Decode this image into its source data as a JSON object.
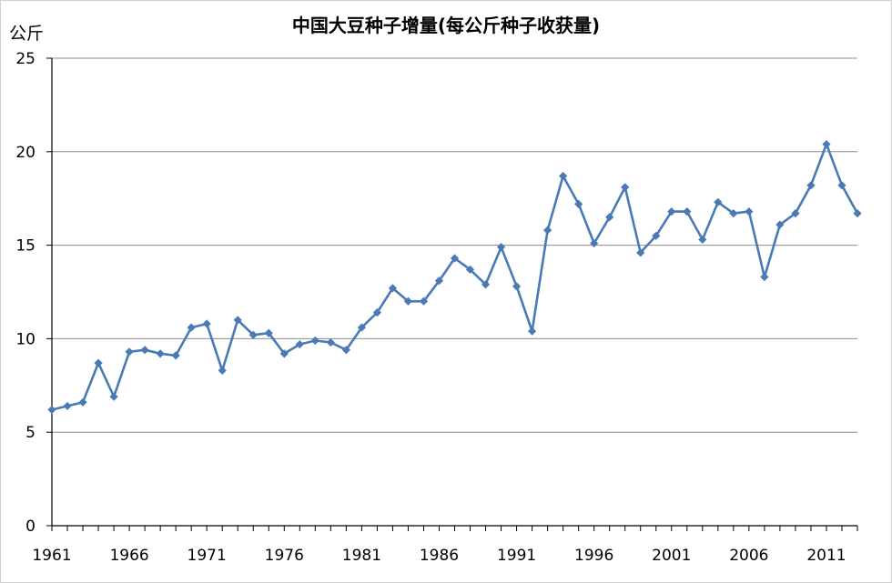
{
  "chart_data": {
    "type": "line",
    "title": "中国大豆种子增量(每公斤种子收获量)",
    "ylabel": "公斤",
    "xlabel": "",
    "ylim": [
      0,
      25
    ],
    "yticks": [
      0,
      5,
      10,
      15,
      20,
      25
    ],
    "xlim": [
      1961,
      2013
    ],
    "xtick_labels": [
      "1961",
      "1966",
      "1971",
      "1976",
      "1981",
      "1986",
      "1991",
      "1996",
      "2001",
      "2006",
      "2011"
    ],
    "grid": "horizontal",
    "legend": "none",
    "series": [
      {
        "color": "#4a7ab5",
        "marker": "diamond",
        "x": [
          1961,
          1962,
          1963,
          1964,
          1965,
          1966,
          1967,
          1968,
          1969,
          1970,
          1971,
          1972,
          1973,
          1974,
          1975,
          1976,
          1977,
          1978,
          1979,
          1980,
          1981,
          1982,
          1983,
          1984,
          1985,
          1986,
          1987,
          1988,
          1989,
          1990,
          1991,
          1992,
          1993,
          1994,
          1995,
          1996,
          1997,
          1998,
          1999,
          2000,
          2001,
          2002,
          2003,
          2004,
          2005,
          2006,
          2007,
          2008,
          2009,
          2010,
          2011,
          2012,
          2013
        ],
        "values": [
          6.2,
          6.4,
          6.6,
          8.7,
          6.9,
          9.3,
          9.4,
          9.2,
          9.1,
          10.6,
          10.8,
          8.3,
          11.0,
          10.2,
          10.3,
          9.2,
          9.7,
          9.9,
          9.8,
          9.4,
          10.6,
          11.4,
          12.7,
          12.0,
          12.0,
          13.1,
          14.3,
          13.7,
          12.9,
          14.9,
          12.8,
          10.4,
          15.8,
          18.7,
          17.2,
          15.1,
          16.5,
          18.1,
          14.6,
          15.5,
          16.8,
          16.8,
          15.3,
          17.3,
          16.7,
          16.8,
          13.3,
          16.1,
          16.7,
          18.2,
          20.4,
          18.2,
          16.7
        ]
      }
    ]
  }
}
